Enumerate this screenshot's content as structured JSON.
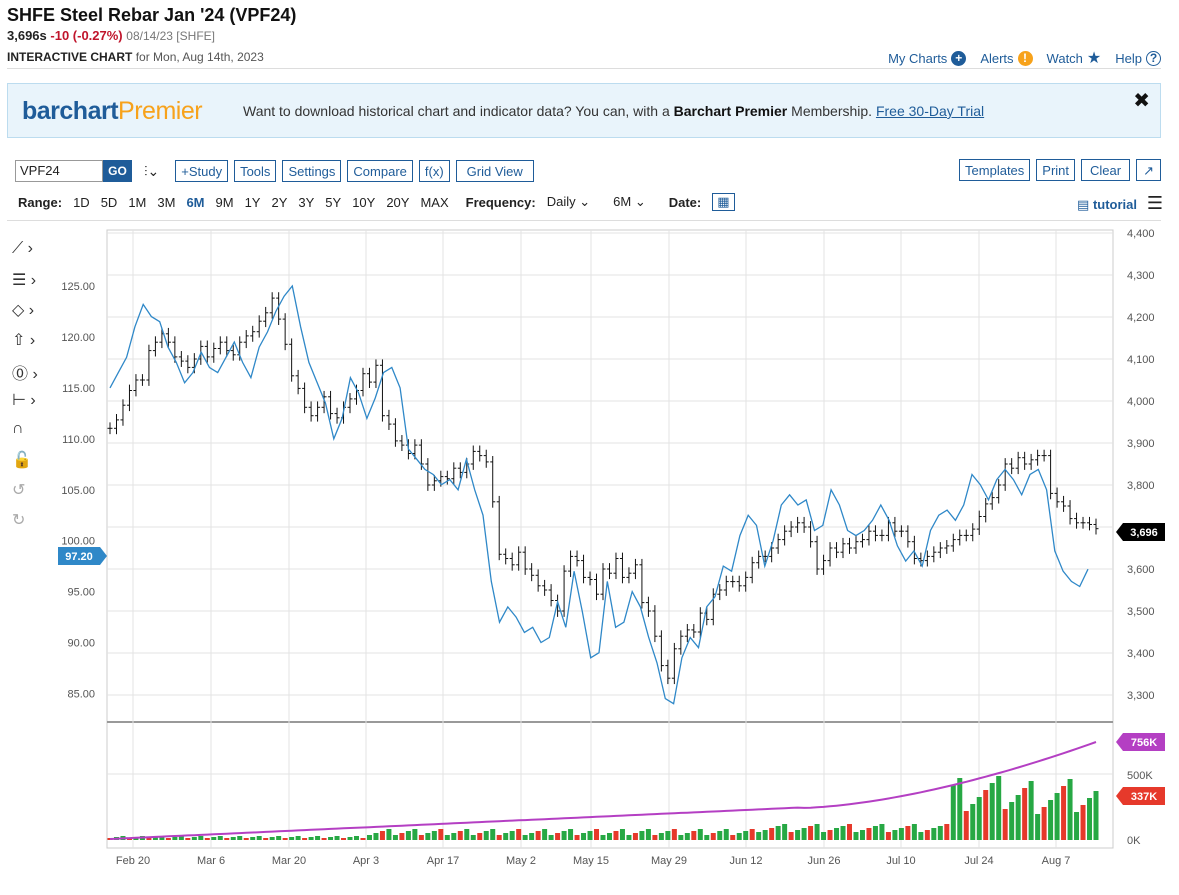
{
  "header": {
    "title": "SHFE Steel Rebar Jan '24 (VPF24)",
    "last": "3,696s",
    "change": "-10 (-0.27%)",
    "meta": "08/14/23 [SHFE]",
    "subtitle_bold": "INTERACTIVE CHART",
    "subtitle_rest": "for Mon, Aug 14th, 2023"
  },
  "toplinks": {
    "my_charts": "My Charts",
    "alerts": "Alerts",
    "watch": "Watch",
    "help": "Help"
  },
  "banner": {
    "logo_part1": "barchart",
    "logo_part2": "Premier",
    "msg_pre": "Want to download historical chart and indicator data? You can, with a",
    "msg_bold": "Barchart Premier",
    "msg_post": "Membership.",
    "link": "Free 30-Day Trial",
    "close": "✖"
  },
  "toolbar": {
    "symbol": "VPF24",
    "go": "GO",
    "study": "+Study",
    "tools": "Tools",
    "settings": "Settings",
    "compare": "Compare",
    "fx": "f(x)",
    "grid_view": "Grid View",
    "templates": "Templates",
    "print": "Print",
    "clear": "Clear"
  },
  "range": {
    "label": "Range:",
    "options": [
      "1D",
      "5D",
      "1M",
      "3M",
      "6M",
      "9M",
      "1Y",
      "2Y",
      "3Y",
      "5Y",
      "10Y",
      "20Y",
      "MAX"
    ],
    "active": "6M",
    "frequency_label": "Frequency:",
    "frequency": "Daily",
    "period": "6M",
    "date_label": "Date:",
    "tutorial": "tutorial"
  },
  "colors": {
    "accent": "#1f5c99",
    "compare_line": "#2f88c8",
    "volume_up": "#27a844",
    "volume_down": "#e6392b",
    "oi_line": "#b43fc3",
    "price_tag": "#000000"
  },
  "chart_data": {
    "type": "line",
    "x_tick_labels": [
      "Feb 20",
      "Mar 6",
      "Mar 20",
      "Apr 3",
      "Apr 17",
      "May 2",
      "May 15",
      "May 29",
      "Jun 12",
      "Jun 26",
      "Jul 10",
      "Jul 24",
      "Aug 7"
    ],
    "right_axis": {
      "ticks": [
        "4,400",
        "4,300",
        "4,200",
        "4,100",
        "4,000",
        "3,900",
        "3,800",
        "3,700",
        "3,600",
        "3,500",
        "3,400",
        "3,300"
      ],
      "ylim": [
        3300,
        4400
      ]
    },
    "left_axis": {
      "ticks": [
        "125.00",
        "120.00",
        "115.00",
        "110.00",
        "105.00",
        "100.00",
        "95.00",
        "90.00",
        "85.00"
      ],
      "ylim": [
        82.2,
        130.5
      ]
    },
    "price_tag": "3,696",
    "compare_tag": "97.20",
    "volume_axis": {
      "ticks": [
        "500K",
        "0K"
      ]
    },
    "oi_tag": "756K",
    "volume_tag": "337K",
    "series": [
      {
        "name": "VPF24",
        "ohlc_close": [
          3935,
          3955,
          3990,
          4025,
          4050,
          4050,
          4120,
          4140,
          4160,
          4140,
          4105,
          4095,
          4080,
          4100,
          4130,
          4105,
          4125,
          4140,
          4120,
          4110,
          4140,
          4155,
          4165,
          4190,
          4210,
          4245,
          4195,
          4135,
          4060,
          4030,
          3985,
          3965,
          3985,
          4010,
          3970,
          3960,
          3985,
          4005,
          4025,
          4065,
          4045,
          4085,
          3965,
          3945,
          3905,
          3895,
          3875,
          3895,
          3850,
          3800,
          3810,
          3820,
          3815,
          3840,
          3830,
          3850,
          3880,
          3870,
          3855,
          3760,
          3635,
          3625,
          3610,
          3640,
          3600,
          3585,
          3560,
          3550,
          3525,
          3500,
          3595,
          3630,
          3620,
          3580,
          3575,
          3540,
          3600,
          3590,
          3625,
          3580,
          3590,
          3610,
          3520,
          3500,
          3440,
          3370,
          3340,
          3410,
          3440,
          3455,
          3450,
          3495,
          3480,
          3540,
          3550,
          3570,
          3570,
          3560,
          3580,
          3615,
          3630,
          3630,
          3650,
          3670,
          3690,
          3700,
          3710,
          3700,
          3665,
          3600,
          3620,
          3650,
          3640,
          3660,
          3650,
          3665,
          3670,
          3690,
          3680,
          3680,
          3710,
          3690,
          3690,
          3665,
          3625,
          3620,
          3630,
          3640,
          3650,
          3655,
          3670,
          3680,
          3680,
          3695,
          3725,
          3755,
          3770,
          3800,
          3850,
          3840,
          3865,
          3850,
          3860,
          3870,
          3870,
          3780,
          3760,
          3750,
          3720,
          3710,
          3710,
          3706,
          3696
        ]
      },
      {
        "name": "compare",
        "values": [
          115.0,
          116.5,
          118.0,
          121.0,
          123.2,
          122.0,
          121.5,
          119.0,
          117.5,
          115.5,
          116.5,
          118.5,
          117.0,
          116.5,
          118.0,
          119.5,
          117.5,
          116.0,
          119.0,
          120.5,
          122.5,
          124.0,
          125.0,
          121.0,
          117.5,
          115.5,
          113.5,
          110.0,
          112.0,
          116.0,
          114.5,
          112.0,
          114.0,
          116.5,
          117.0,
          115.0,
          109.0,
          108.0,
          107.0,
          106.5,
          105.5,
          106.0,
          105.0,
          108.0,
          105.0,
          102.5,
          96.0,
          92.0,
          93.5,
          92.5,
          91.0,
          91.5,
          90.0,
          90.5,
          94.0,
          91.5,
          97.0,
          93.0,
          88.5,
          89.0,
          96.0,
          91.5,
          92.0,
          95.0,
          93.5,
          90.5,
          88.0,
          84.5,
          84.0,
          88.5,
          90.5,
          89.5,
          93.5,
          94.5,
          97.5,
          97.0,
          100.5,
          102.5,
          101.5,
          97.5,
          100.0,
          103.5,
          104.5,
          103.5,
          104.0,
          101.0,
          101.5,
          105.0,
          103.5,
          101.0,
          100.5,
          101.0,
          102.0,
          103.5,
          102.0,
          99.5,
          98.0,
          99.0,
          97.5,
          101.0,
          102.5,
          103.0,
          102.0,
          103.5,
          106.5,
          105.5,
          104.0,
          106.0,
          107.0,
          106.0,
          104.5,
          106.5,
          107.0,
          105.0,
          99.0,
          97.0,
          96.0,
          95.5,
          97.2
        ]
      }
    ],
    "volume": [
      {
        "v": 5,
        "up": true
      },
      {
        "v": 6,
        "up": false
      },
      {
        "v": 5,
        "up": true
      },
      {
        "v": 7,
        "up": false
      },
      {
        "v": 6,
        "up": true
      }
    ]
  }
}
